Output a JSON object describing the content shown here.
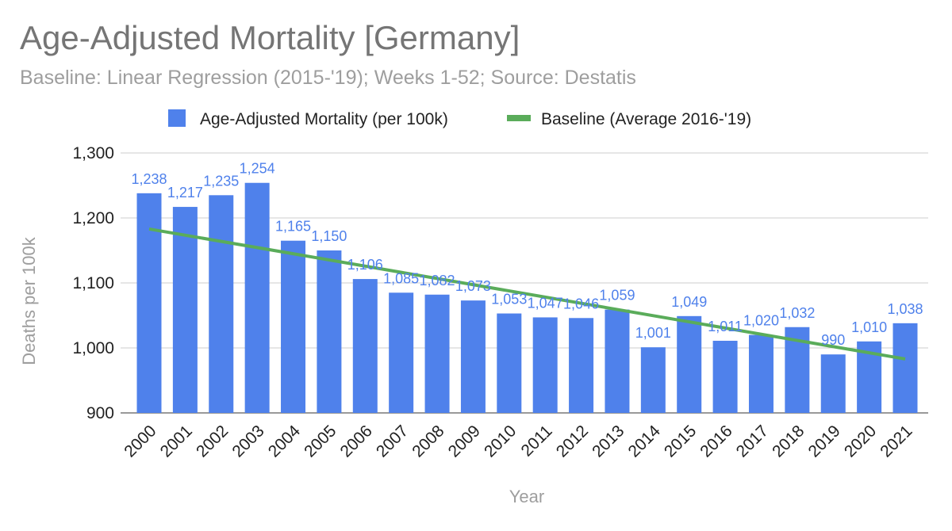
{
  "chart_data": {
    "type": "bar",
    "title": "Age-Adjusted Mortality [Germany]",
    "subtitle": "Baseline: Linear Regression (2015-'19); Weeks 1-52; Source: Destatis",
    "xlabel": "Year",
    "ylabel": "Deaths per 100k",
    "ylim": [
      900,
      1300
    ],
    "yticks": [
      900,
      1000,
      1100,
      1200,
      1300
    ],
    "ytick_labels": [
      "900",
      "1,000",
      "1,100",
      "1,200",
      "1,300"
    ],
    "categories": [
      "2000",
      "2001",
      "2002",
      "2003",
      "2004",
      "2005",
      "2006",
      "2007",
      "2008",
      "2009",
      "2010",
      "2011",
      "2012",
      "2013",
      "2014",
      "2015",
      "2016",
      "2017",
      "2018",
      "2019",
      "2020",
      "2021"
    ],
    "series": [
      {
        "name": "Age-Adjusted Mortality (per 100k)",
        "kind": "bar",
        "color": "#4f81eb",
        "values": [
          1238,
          1217,
          1235,
          1254,
          1165,
          1150,
          1106,
          1085,
          1082,
          1073,
          1053,
          1047,
          1046,
          1059,
          1001,
          1049,
          1011,
          1020,
          1032,
          990,
          1010,
          1038
        ],
        "labels": [
          "1,238",
          "1,217",
          "1,235",
          "1,254",
          "1,165",
          "1,150",
          "1,106",
          "1,085",
          "1,082",
          "1,073",
          "1,053",
          "1,047",
          "1,046",
          "1,059",
          "1,001",
          "1,049",
          "1,011",
          "1,020",
          "1,032",
          "990",
          "1,010",
          "1,038"
        ]
      },
      {
        "name": "Baseline (Average 2016-'19)",
        "kind": "line",
        "color": "#5aac5a",
        "start": {
          "x": "2000",
          "y": 1183
        },
        "end": {
          "x": "2021",
          "y": 983
        }
      }
    ],
    "legend_position": "top-center",
    "grid": true
  }
}
